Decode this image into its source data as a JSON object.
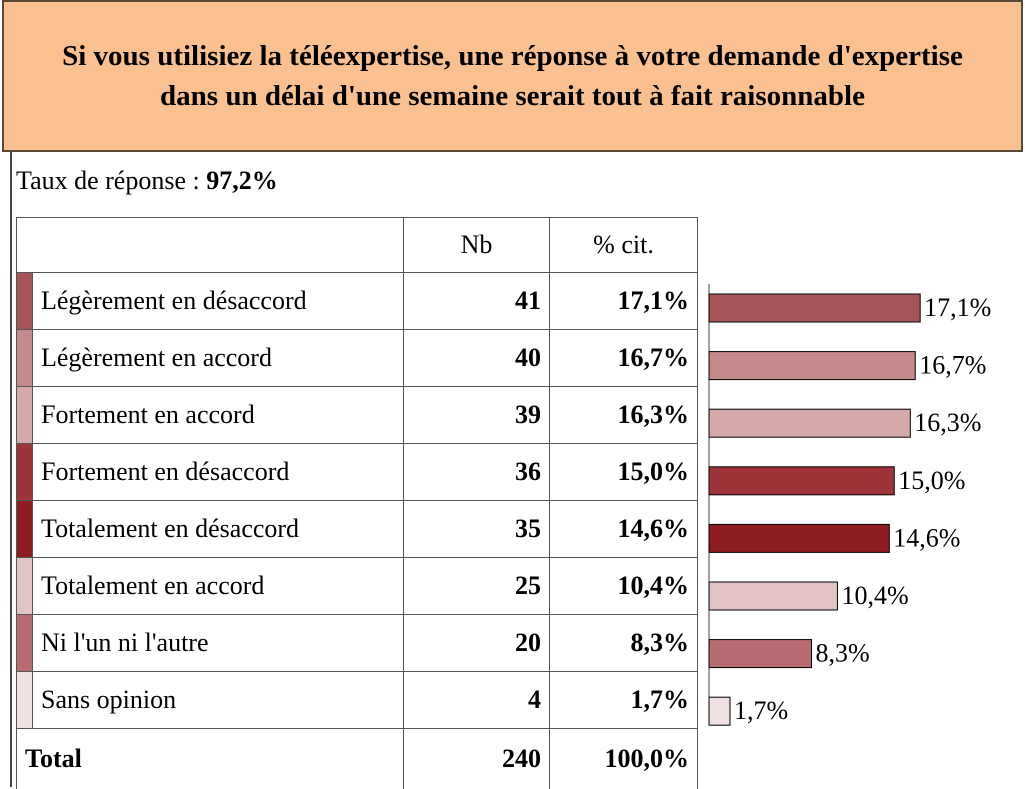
{
  "title": "Si vous utilisiez la téléexpertise, une réponse à votre demande d'expertise dans un délai d'une semaine serait tout à fait raisonnable",
  "response_rate": {
    "label": "Taux de réponse :",
    "value": "97,2%"
  },
  "table": {
    "headers": [
      "Nb",
      "% cit."
    ],
    "rows": [
      {
        "label": "Légèrement en désaccord",
        "nb": "41",
        "pct": "17,1%",
        "value": 17.1,
        "color": "#A8555A"
      },
      {
        "label": "Légèrement en accord",
        "nb": "40",
        "pct": "16,7%",
        "value": 16.7,
        "color": "#C48A8C"
      },
      {
        "label": "Fortement en accord",
        "nb": "39",
        "pct": "16,3%",
        "value": 16.3,
        "color": "#D5A8AA"
      },
      {
        "label": "Fortement en désaccord",
        "nb": "36",
        "pct": "15,0%",
        "value": 15.0,
        "color": "#9E343A"
      },
      {
        "label": "Totalement en désaccord",
        "nb": "35",
        "pct": "14,6%",
        "value": 14.6,
        "color": "#8E1C22"
      },
      {
        "label": "Totalement en accord",
        "nb": "25",
        "pct": "10,4%",
        "value": 10.4,
        "color": "#E2C4C6"
      },
      {
        "label": "Ni l'un ni l'autre",
        "nb": "20",
        "pct": "8,3%",
        "value": 8.3,
        "color": "#B86B70"
      },
      {
        "label": "Sans opinion",
        "nb": "4",
        "pct": "1,7%",
        "value": 1.7,
        "color": "#F0E0E2"
      }
    ],
    "total": {
      "label": "Total",
      "nb": "240",
      "pct": "100,0%"
    }
  }
}
